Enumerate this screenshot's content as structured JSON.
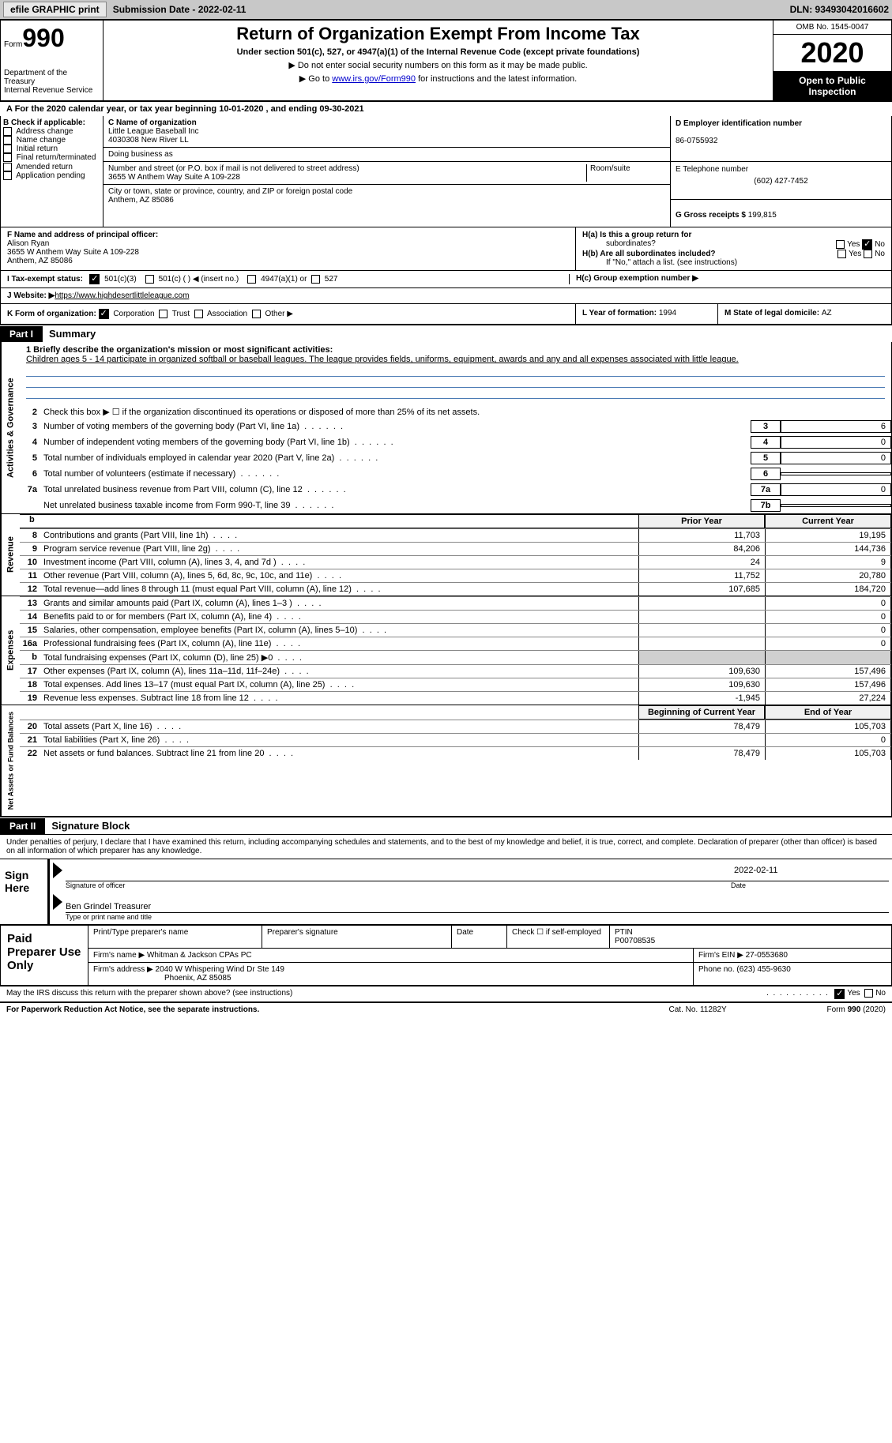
{
  "topbar": {
    "efile": "efile GRAPHIC print",
    "submission": "Submission Date - 2022-02-11",
    "dln": "DLN: 93493042016602"
  },
  "header": {
    "form_label": "Form",
    "form_number": "990",
    "title": "Return of Organization Exempt From Income Tax",
    "subtitle": "Under section 501(c), 527, or 4947(a)(1) of the Internal Revenue Code (except private foundations)",
    "line1": "▶ Do not enter social security numbers on this form as it may be made public.",
    "line2_pre": "▶ Go to ",
    "line2_link": "www.irs.gov/Form990",
    "line2_post": " for instructions and the latest information.",
    "dept": "Department of the Treasury\nInternal Revenue Service",
    "omb": "OMB No. 1545-0047",
    "year": "2020",
    "open_public": "Open to Public Inspection"
  },
  "taxyear": "For the 2020 calendar year, or tax year beginning 10-01-2020     , and ending 09-30-2021",
  "section_b": {
    "label": "B Check if applicable:",
    "items": [
      "Address change",
      "Name change",
      "Initial return",
      "Final return/terminated",
      "Amended return",
      "Application pending"
    ]
  },
  "section_c": {
    "name_label": "C Name of organization",
    "name1": "Little League Baseball Inc",
    "name2": "4030308 New River LL",
    "dba_label": "Doing business as",
    "street_label": "Number and street (or P.O. box if mail is not delivered to street address)",
    "room_label": "Room/suite",
    "street": "3655 W Anthem Way Suite A 109-228",
    "city_label": "City or town, state or province, country, and ZIP or foreign postal code",
    "city": "Anthem, AZ  85086"
  },
  "section_d": {
    "ein_label": "D Employer identification number",
    "ein": "86-0755932",
    "phone_label": "E Telephone number",
    "phone": "(602) 427-7452",
    "gross_label": "G Gross receipts $ ",
    "gross": "199,815"
  },
  "section_f": {
    "label": "F  Name and address of principal officer:",
    "name": "Alison Ryan",
    "addr1": "3655 W Anthem Way Suite A 109-228",
    "addr2": "Anthem, AZ  85086"
  },
  "section_h": {
    "ha_label": "H(a)  Is this a group return for",
    "ha_sub": "subordinates?",
    "hb_label": "H(b)  Are all subordinates included?",
    "hb_note": "If \"No,\" attach a list. (see instructions)",
    "hc_label": "H(c)  Group exemption number ▶",
    "yes": "Yes",
    "no": "No"
  },
  "tax_exempt": {
    "i_label": "I     Tax-exempt status:",
    "opt1": "501(c)(3)",
    "opt2": "501(c) (  ) ◀ (insert no.)",
    "opt3": "4947(a)(1) or",
    "opt4": "527"
  },
  "website": {
    "j_label": "J    Website: ▶  ",
    "url": "https://www.highdesertlittleleague.com"
  },
  "section_k": {
    "label": "K Form of organization: ",
    "corp": "Corporation",
    "trust": "Trust",
    "assoc": "Association",
    "other": "Other ▶",
    "l_label": "L Year of formation: ",
    "l_val": "1994",
    "m_label": "M State of legal domicile: ",
    "m_val": "AZ"
  },
  "part1": {
    "header": "Part I",
    "title": "Summary",
    "q1_label": "1  Briefly describe the organization's mission or most significant activities:",
    "q1_text": "Children ages 5 - 14 participate in organized softball or baseball leagues. The league provides fields, uniforms, equipment, awards and any and all expenses associated with little league.",
    "q2": "Check this box ▶ ☐  if the organization discontinued its operations or disposed of more than 25% of its net assets.",
    "sections": {
      "gov": "Activities & Governance",
      "rev": "Revenue",
      "exp": "Expenses",
      "net": "Net Assets or Fund Balances"
    },
    "gov_lines": [
      {
        "num": "3",
        "text": "Number of voting members of the governing body (Part VI, line 1a)",
        "box": "3",
        "val": "6"
      },
      {
        "num": "4",
        "text": "Number of independent voting members of the governing body (Part VI, line 1b)",
        "box": "4",
        "val": "0"
      },
      {
        "num": "5",
        "text": "Total number of individuals employed in calendar year 2020 (Part V, line 2a)",
        "box": "5",
        "val": "0"
      },
      {
        "num": "6",
        "text": "Total number of volunteers (estimate if necessary)",
        "box": "6",
        "val": ""
      },
      {
        "num": "7a",
        "text": "Total unrelated business revenue from Part VIII, column (C), line 12",
        "box": "7a",
        "val": "0"
      },
      {
        "num": "",
        "text": "Net unrelated business taxable income from Form 990-T, line 39",
        "box": "7b",
        "val": ""
      }
    ],
    "prior_year": "Prior Year",
    "current_year": "Current Year",
    "rev_lines": [
      {
        "num": "8",
        "text": "Contributions and grants (Part VIII, line 1h)",
        "prior": "11,703",
        "current": "19,195"
      },
      {
        "num": "9",
        "text": "Program service revenue (Part VIII, line 2g)",
        "prior": "84,206",
        "current": "144,736"
      },
      {
        "num": "10",
        "text": "Investment income (Part VIII, column (A), lines 3, 4, and 7d )",
        "prior": "24",
        "current": "9"
      },
      {
        "num": "11",
        "text": "Other revenue (Part VIII, column (A), lines 5, 6d, 8c, 9c, 10c, and 11e)",
        "prior": "11,752",
        "current": "20,780"
      },
      {
        "num": "12",
        "text": "Total revenue—add lines 8 through 11 (must equal Part VIII, column (A), line 12)",
        "prior": "107,685",
        "current": "184,720"
      }
    ],
    "exp_lines": [
      {
        "num": "13",
        "text": "Grants and similar amounts paid (Part IX, column (A), lines 1–3 )",
        "prior": "",
        "current": "0"
      },
      {
        "num": "14",
        "text": "Benefits paid to or for members (Part IX, column (A), line 4)",
        "prior": "",
        "current": "0"
      },
      {
        "num": "15",
        "text": "Salaries, other compensation, employee benefits (Part IX, column (A), lines 5–10)",
        "prior": "",
        "current": "0"
      },
      {
        "num": "16a",
        "text": "Professional fundraising fees (Part IX, column (A), line 11e)",
        "prior": "",
        "current": "0"
      },
      {
        "num": "b",
        "text": "Total fundraising expenses (Part IX, column (D), line 25) ▶0",
        "prior": "GRAY",
        "current": "GRAY"
      },
      {
        "num": "17",
        "text": "Other expenses (Part IX, column (A), lines 11a–11d, 11f–24e)",
        "prior": "109,630",
        "current": "157,496"
      },
      {
        "num": "18",
        "text": "Total expenses. Add lines 13–17 (must equal Part IX, column (A), line 25)",
        "prior": "109,630",
        "current": "157,496"
      },
      {
        "num": "19",
        "text": "Revenue less expenses. Subtract line 18 from line 12",
        "prior": "-1,945",
        "current": "27,224"
      }
    ],
    "begin_year": "Beginning of Current Year",
    "end_year": "End of Year",
    "net_lines": [
      {
        "num": "20",
        "text": "Total assets (Part X, line 16)",
        "prior": "78,479",
        "current": "105,703"
      },
      {
        "num": "21",
        "text": "Total liabilities (Part X, line 26)",
        "prior": "",
        "current": "0"
      },
      {
        "num": "22",
        "text": "Net assets or fund balances. Subtract line 21 from line 20",
        "prior": "78,479",
        "current": "105,703"
      }
    ]
  },
  "part2": {
    "header": "Part II",
    "title": "Signature Block",
    "declaration": "Under penalties of perjury, I declare that I have examined this return, including accompanying schedules and statements, and to the best of my knowledge and belief, it is true, correct, and complete. Declaration of preparer (other than officer) is based on all information of which preparer has any knowledge.",
    "sign_here": "Sign Here",
    "sig_officer": "Signature of officer",
    "date": "Date",
    "sig_date": "2022-02-11",
    "name_title": "Ben Grindel  Treasurer",
    "name_title_label": "Type or print name and title"
  },
  "paid": {
    "label": "Paid Preparer Use Only",
    "col1": "Print/Type preparer's name",
    "col2": "Preparer's signature",
    "col3": "Date",
    "col4_pre": "Check ☐  if self-employed",
    "col5_label": "PTIN",
    "col5_val": "P00708535",
    "firm_name_label": "Firm's name      ▶ ",
    "firm_name": "Whitman & Jackson CPAs PC",
    "firm_ein_label": "Firm's EIN ▶ ",
    "firm_ein": "27-0553680",
    "firm_addr_label": "Firm's address ▶ ",
    "firm_addr1": "2040 W Whispering Wind Dr Ste 149",
    "firm_addr2": "Phoenix, AZ  85085",
    "phone_label": "Phone no. ",
    "phone": "(623) 455-9630"
  },
  "discuss": {
    "text": "May the IRS discuss this return with the preparer shown above? (see instructions)",
    "yes": "Yes",
    "no": "No"
  },
  "footer": {
    "left": "For Paperwork Reduction Act Notice, see the separate instructions.",
    "mid": "Cat. No. 11282Y",
    "right_pre": "Form ",
    "right_bold": "990",
    "right_post": " (2020)"
  }
}
